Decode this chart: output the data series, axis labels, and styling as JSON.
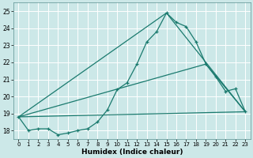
{
  "xlabel": "Humidex (Indice chaleur)",
  "background_color": "#cce8e8",
  "grid_color": "#ffffff",
  "line_color": "#1a7a6e",
  "xlim": [
    -0.5,
    23.5
  ],
  "ylim": [
    17.5,
    25.5
  ],
  "yticks": [
    18,
    19,
    20,
    21,
    22,
    23,
    24,
    25
  ],
  "xticks": [
    0,
    1,
    2,
    3,
    4,
    5,
    6,
    7,
    8,
    9,
    10,
    11,
    12,
    13,
    14,
    15,
    16,
    17,
    18,
    19,
    20,
    21,
    22,
    23
  ],
  "curve_x": [
    0,
    1,
    2,
    3,
    4,
    5,
    6,
    7,
    8,
    9,
    10,
    11,
    12,
    13,
    14,
    15,
    16,
    17,
    18,
    19,
    20,
    21,
    22,
    23
  ],
  "curve_y": [
    18.8,
    18.0,
    18.1,
    18.1,
    17.75,
    17.85,
    18.0,
    18.1,
    18.5,
    19.2,
    20.4,
    20.8,
    21.9,
    23.2,
    23.8,
    24.9,
    24.35,
    24.1,
    23.2,
    21.9,
    21.15,
    20.3,
    20.45,
    19.1
  ],
  "line1_x": [
    0,
    23
  ],
  "line1_y": [
    18.8,
    19.1
  ],
  "line2_x": [
    0,
    19,
    23
  ],
  "line2_y": [
    18.8,
    21.9,
    19.1
  ],
  "line3_x": [
    0,
    15,
    23
  ],
  "line3_y": [
    18.8,
    24.9,
    19.1
  ]
}
